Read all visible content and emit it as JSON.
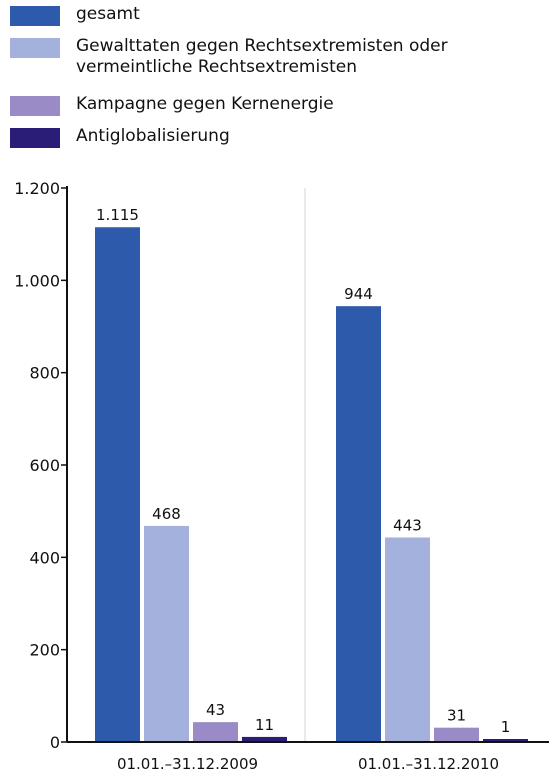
{
  "chart_data": {
    "type": "bar",
    "categories": [
      "01.01.–31.12.2009",
      "01.01.–31.12.2010"
    ],
    "series": [
      {
        "name": "gesamt",
        "values": [
          1115,
          944
        ],
        "labels": [
          "1.115",
          "944"
        ],
        "color": "#2d5aab"
      },
      {
        "name": "Gewalttaten gegen Rechtsextremisten oder\nvermeintliche Rechtsextremisten",
        "values": [
          468,
          443
        ],
        "labels": [
          "468",
          "443"
        ],
        "color": "#a3b1dc"
      },
      {
        "name": "Kampagne gegen Kernenergie",
        "values": [
          43,
          31
        ],
        "labels": [
          "43",
          "31"
        ],
        "color": "#9a8bc6"
      },
      {
        "name": "Antiglobalisierung",
        "values": [
          11,
          1
        ],
        "labels": [
          "11",
          "1"
        ],
        "color": "#2a1d78"
      }
    ],
    "yticks": [
      {
        "value": 0,
        "label": "0"
      },
      {
        "value": 200,
        "label": "200"
      },
      {
        "value": 400,
        "label": "400"
      },
      {
        "value": 600,
        "label": "600"
      },
      {
        "value": 800,
        "label": "800"
      },
      {
        "value": 1000,
        "label": "1.000"
      },
      {
        "value": 1200,
        "label": "1.200"
      }
    ],
    "ylim": [
      0,
      1200
    ],
    "grid": "vertical separator between groups only",
    "legend_position": "top-left"
  }
}
